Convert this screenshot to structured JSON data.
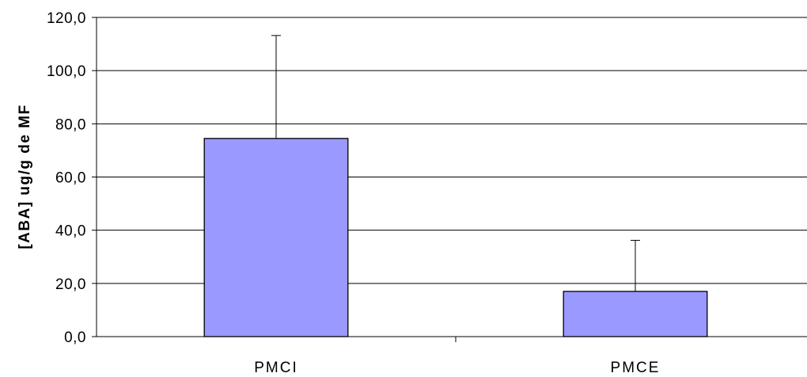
{
  "chart_data": {
    "type": "bar",
    "title": "",
    "xlabel": "",
    "ylabel": "[ABA] ug/g de MF",
    "categories": [
      "PMCI",
      "PMCE"
    ],
    "values": [
      74.5,
      17.0
    ],
    "error_plus": [
      38.7,
      19.2
    ],
    "ylim": [
      0,
      120
    ],
    "ytick_step": 20,
    "ytick_labels": [
      "0,0",
      "20,0",
      "40,0",
      "60,0",
      "80,0",
      "100,0",
      "120,0"
    ],
    "grid": true,
    "legend": "none",
    "bar_color": "#9999ff",
    "bar_edge_color": "#000000"
  }
}
